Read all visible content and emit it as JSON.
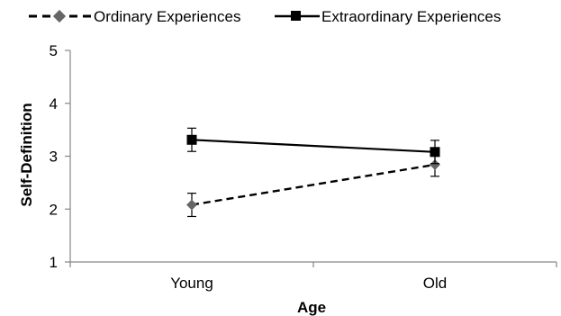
{
  "chart_data": {
    "type": "line",
    "title": "",
    "xlabel": "Age",
    "ylabel": "Self-Definition",
    "categories": [
      "Young",
      "Old"
    ],
    "ylim": [
      1,
      5
    ],
    "yticks": [
      "1",
      "2",
      "3",
      "4",
      "5"
    ],
    "grid": false,
    "legend_position": "top",
    "series": [
      {
        "name": "Ordinary Experiences",
        "values": [
          2.08,
          2.84
        ],
        "errors": [
          0.22,
          0.22
        ],
        "line_style": "dashed",
        "marker": "diamond",
        "color": "#000000",
        "marker_color": "#666666"
      },
      {
        "name": "Extraordinary Experiences",
        "values": [
          3.31,
          3.08
        ],
        "errors": [
          0.22,
          0.22
        ],
        "line_style": "solid",
        "marker": "square",
        "color": "#000000",
        "marker_color": "#000000"
      }
    ]
  }
}
